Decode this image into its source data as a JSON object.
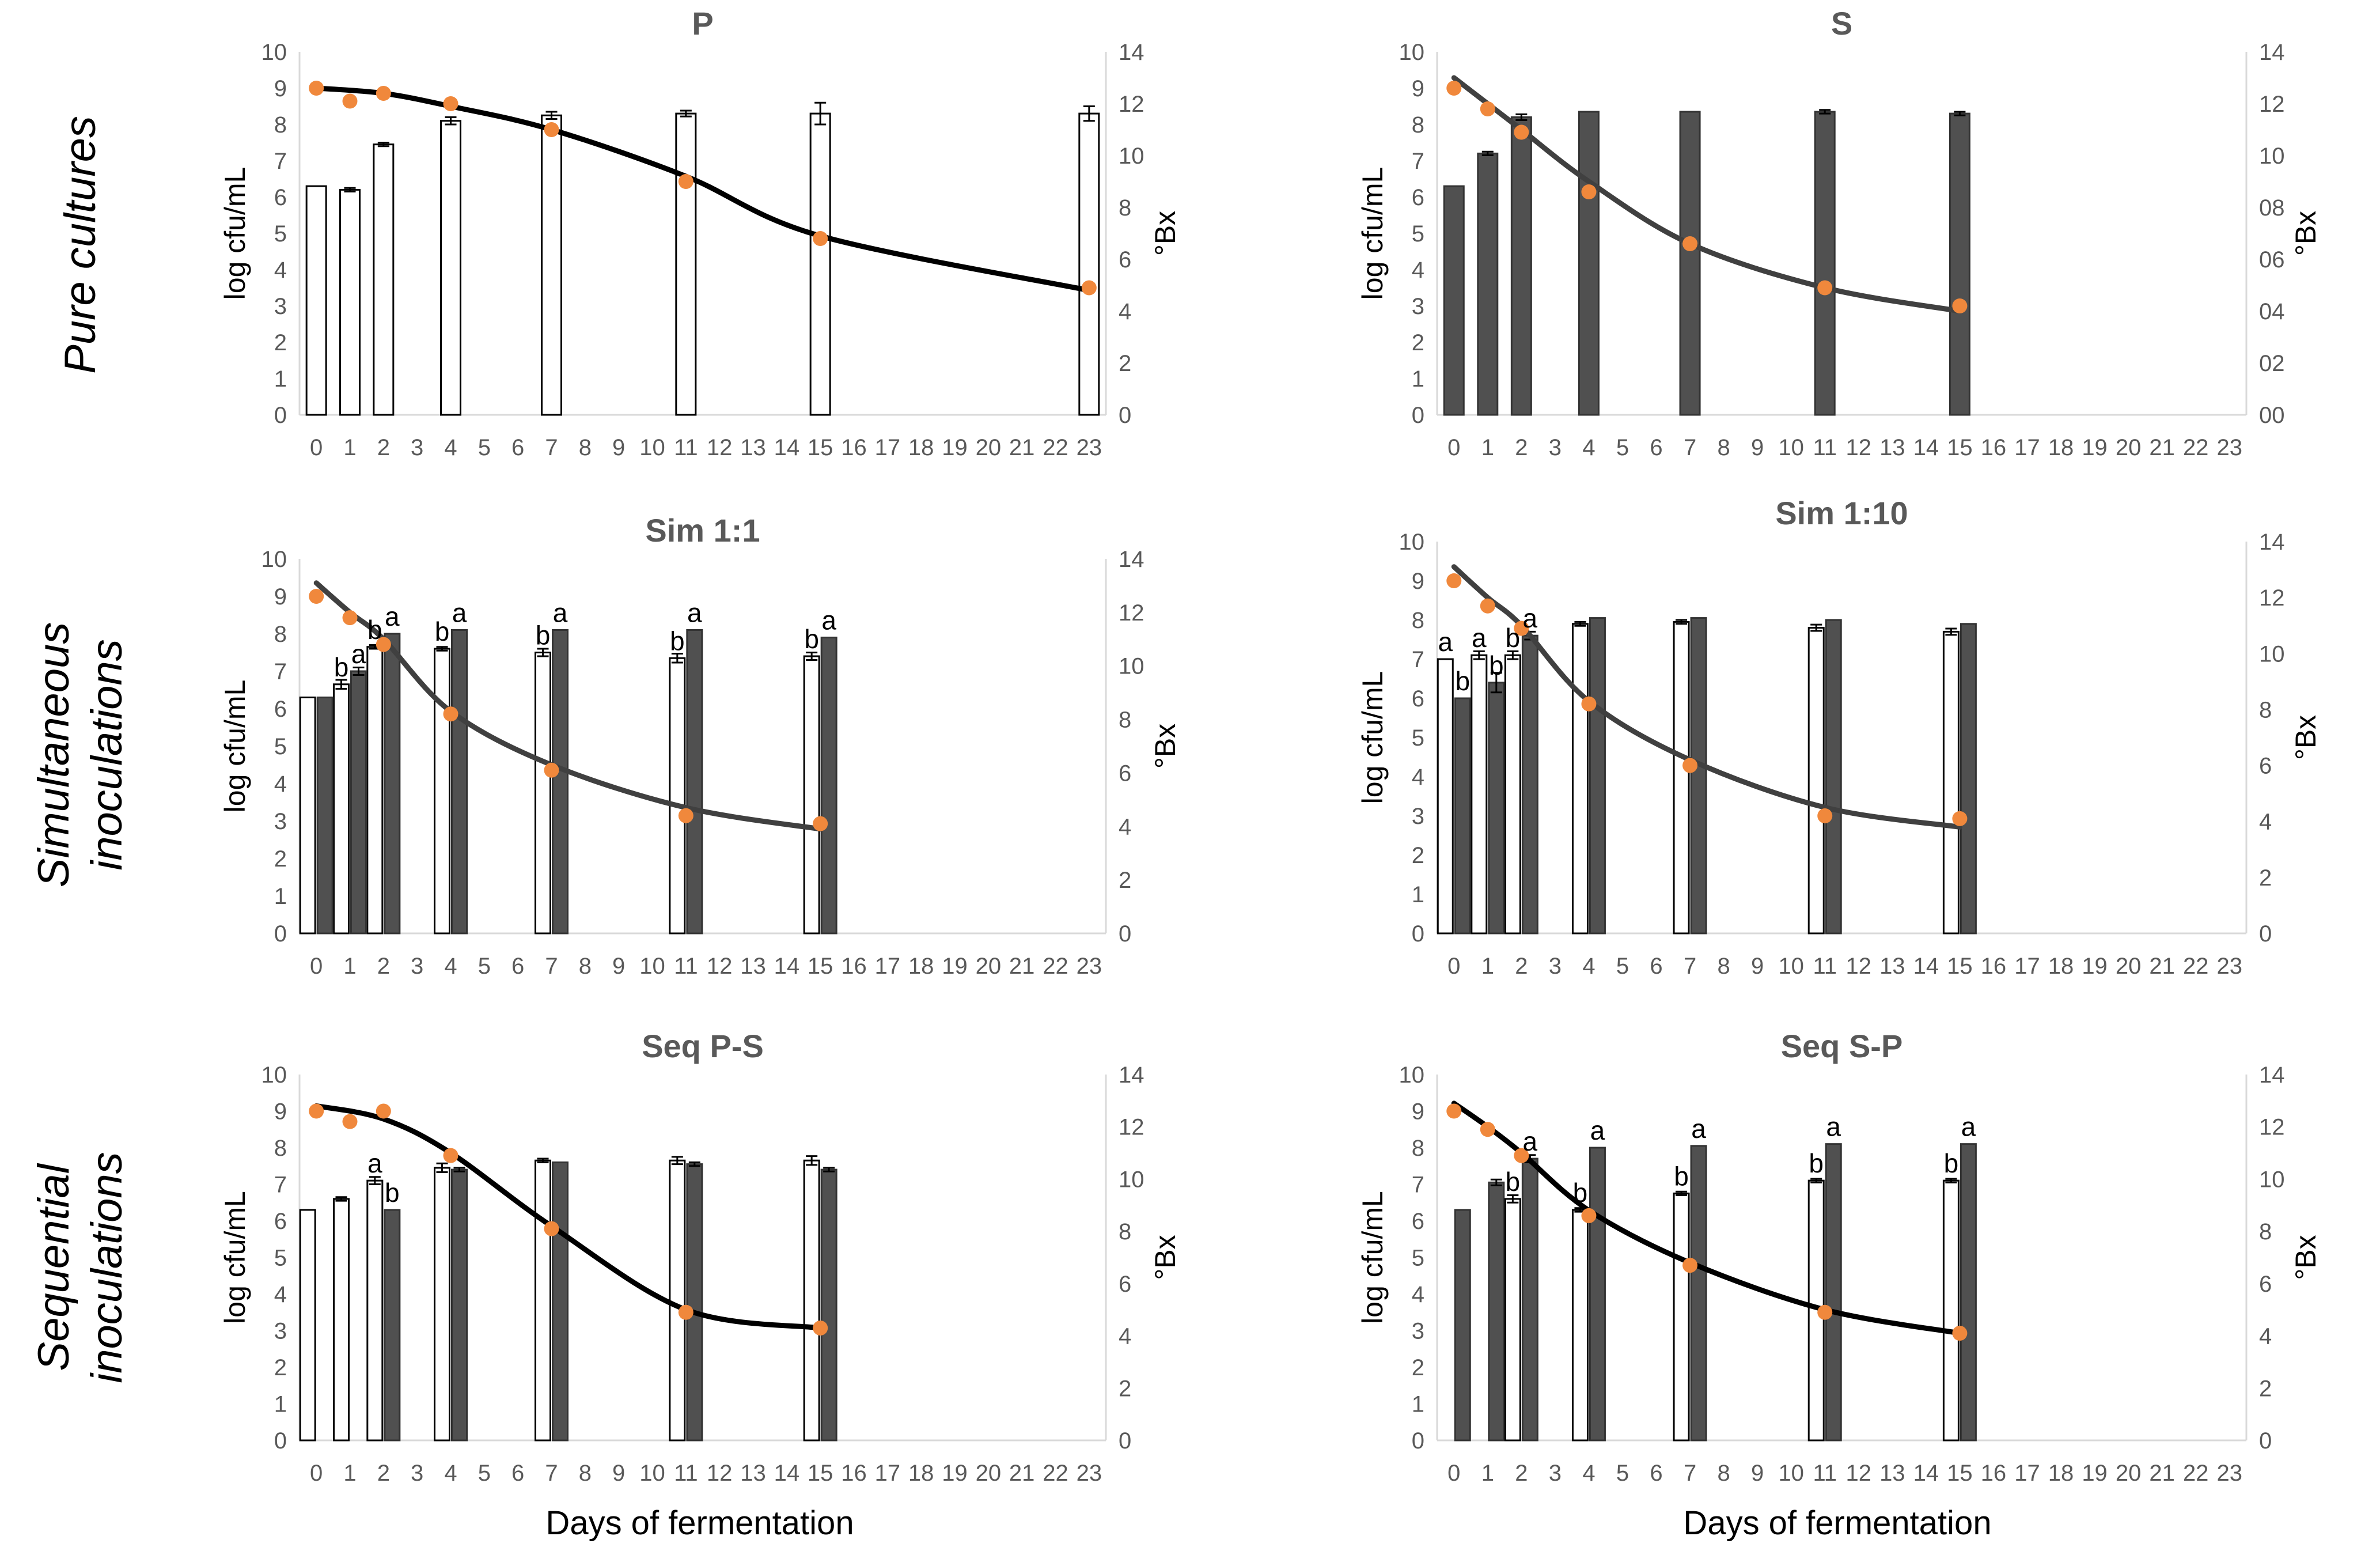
{
  "row_labels": [
    {
      "line1": "Pure cultures",
      "line2": ""
    },
    {
      "line1": "Simultaneous",
      "line2": "inoculations"
    },
    {
      "line1": "Sequential",
      "line2": "inoculations"
    }
  ],
  "x_axis_title": "Days of fermentation",
  "colors": {
    "white_bar": "#ffffff",
    "dark_bar": "#505050",
    "point": "#f0883c",
    "curve_black": "#000000",
    "curve_gray": "#404040",
    "axis": "#d9d9d9",
    "tick_text": "#595959"
  },
  "chart_data": [
    {
      "type": "bar",
      "title": "P",
      "ylabel": "log cfu/mL",
      "y2label": "°Bx",
      "ylim": [
        0,
        10
      ],
      "y2lim": [
        0,
        14
      ],
      "y2_ticks": [
        "0",
        "2",
        "4",
        "6",
        "8",
        "10",
        "12",
        "14"
      ],
      "categories": [
        "0",
        "1",
        "2",
        "3",
        "4",
        "5",
        "6",
        "7",
        "8",
        "9",
        "10",
        "11",
        "12",
        "13",
        "14",
        "15",
        "16",
        "17",
        "18",
        "19",
        "20",
        "21",
        "22",
        "23"
      ],
      "series": [
        {
          "name": "P",
          "color": "white",
          "x": [
            0,
            1,
            2,
            4,
            7,
            11,
            15,
            23
          ],
          "values": [
            6.3,
            6.2,
            7.45,
            8.1,
            8.25,
            8.3,
            8.3,
            8.3
          ],
          "err": [
            0,
            0.05,
            0.05,
            0.1,
            0.1,
            0.08,
            0.3,
            0.2
          ]
        }
      ],
      "brix_points": {
        "x": [
          0,
          1,
          2,
          4,
          7,
          11,
          15,
          23
        ],
        "values": [
          12.6,
          12.1,
          12.4,
          12.0,
          11.0,
          9.0,
          6.8,
          4.9
        ]
      },
      "brix_curve": {
        "color": "black",
        "x": [
          0,
          2,
          4,
          7,
          11,
          15,
          23
        ],
        "values": [
          12.6,
          12.4,
          11.9,
          11.0,
          9.2,
          6.9,
          4.8
        ]
      },
      "labels": []
    },
    {
      "type": "bar",
      "title": "S",
      "ylabel": "log cfu/mL",
      "y2label": "°Bx",
      "ylim": [
        0,
        10
      ],
      "y2lim": [
        0,
        14
      ],
      "y2_ticks": [
        "00",
        "02",
        "04",
        "06",
        "08",
        "10",
        "12",
        "14"
      ],
      "categories": [
        "0",
        "1",
        "2",
        "3",
        "4",
        "5",
        "6",
        "7",
        "8",
        "9",
        "10",
        "11",
        "12",
        "13",
        "14",
        "15",
        "16",
        "17",
        "18",
        "19",
        "20",
        "21",
        "22",
        "23"
      ],
      "series": [
        {
          "name": "S",
          "color": "dark",
          "x": [
            0,
            1,
            2,
            4,
            7,
            11,
            15
          ],
          "values": [
            6.3,
            7.2,
            8.2,
            8.35,
            8.35,
            8.35,
            8.3
          ],
          "err": [
            0,
            0.05,
            0.08,
            0,
            0,
            0.05,
            0.05
          ]
        }
      ],
      "brix_points": {
        "x": [
          0,
          1,
          2,
          4,
          7,
          11,
          15
        ],
        "values": [
          12.6,
          11.8,
          10.9,
          8.6,
          6.6,
          4.9,
          4.2
        ]
      },
      "brix_curve": {
        "color": "gray",
        "x": [
          0,
          1,
          2,
          4,
          7,
          11,
          15
        ],
        "values": [
          13.0,
          12.0,
          11.0,
          9.0,
          6.6,
          4.9,
          4.0
        ]
      },
      "labels": []
    },
    {
      "type": "bar",
      "title": "Sim 1:1",
      "ylabel": "log cfu/mL",
      "y2label": "°Bx",
      "ylim": [
        0,
        10
      ],
      "y2lim": [
        0,
        14
      ],
      "y2_ticks": [
        "0",
        "2",
        "4",
        "6",
        "8",
        "10",
        "12",
        "14"
      ],
      "categories": [
        "0",
        "1",
        "2",
        "3",
        "4",
        "5",
        "6",
        "7",
        "8",
        "9",
        "10",
        "11",
        "12",
        "13",
        "14",
        "15",
        "16",
        "17",
        "18",
        "19",
        "20",
        "21",
        "22",
        "23"
      ],
      "series": [
        {
          "name": "P",
          "color": "white",
          "x": [
            0,
            1,
            2,
            4,
            7,
            11,
            15
          ],
          "values": [
            6.3,
            6.65,
            7.65,
            7.6,
            7.5,
            7.35,
            7.4
          ],
          "err": [
            0,
            0.12,
            0.05,
            0.05,
            0.1,
            0.12,
            0.1
          ]
        },
        {
          "name": "S",
          "color": "dark",
          "x": [
            0,
            1,
            2,
            4,
            7,
            11,
            15
          ],
          "values": [
            6.3,
            7.0,
            8.0,
            8.1,
            8.1,
            8.1,
            7.9
          ],
          "err": [
            0,
            0.1,
            0,
            0,
            0,
            0,
            0
          ]
        }
      ],
      "brix_points": {
        "x": [
          0,
          1,
          2,
          4,
          7,
          11,
          15
        ],
        "values": [
          12.6,
          11.8,
          10.8,
          8.2,
          6.1,
          4.4,
          4.1
        ]
      },
      "brix_curve": {
        "color": "gray",
        "x": [
          0,
          1,
          2,
          4,
          7,
          11,
          15
        ],
        "values": [
          13.1,
          12.0,
          11.0,
          8.3,
          6.3,
          4.7,
          3.9
        ]
      },
      "labels": [
        {
          "text": "b",
          "x": 1,
          "side": "white",
          "value": 6.65
        },
        {
          "text": "a",
          "x": 1,
          "side": "dark",
          "value": 7.0
        },
        {
          "text": "b",
          "x": 2,
          "side": "white",
          "value": 7.65
        },
        {
          "text": "a",
          "x": 2,
          "side": "dark",
          "value": 8.0
        },
        {
          "text": "b",
          "x": 4,
          "side": "white",
          "value": 7.6
        },
        {
          "text": "a",
          "x": 4,
          "side": "dark",
          "value": 8.1
        },
        {
          "text": "b",
          "x": 7,
          "side": "white",
          "value": 7.5
        },
        {
          "text": "a",
          "x": 7,
          "side": "dark",
          "value": 8.1
        },
        {
          "text": "b",
          "x": 11,
          "side": "white",
          "value": 7.35
        },
        {
          "text": "a",
          "x": 11,
          "side": "dark",
          "value": 8.1
        },
        {
          "text": "b",
          "x": 15,
          "side": "white",
          "value": 7.4
        },
        {
          "text": "a",
          "x": 15,
          "side": "dark",
          "value": 7.9
        }
      ]
    },
    {
      "type": "bar",
      "title": "Sim 1:10",
      "ylabel": "log cfu/mL",
      "y2label": "°Bx",
      "ylim": [
        0,
        10
      ],
      "y2lim": [
        0,
        14
      ],
      "y2_ticks": [
        "0",
        "2",
        "4",
        "6",
        "8",
        "10",
        "12",
        "14"
      ],
      "categories": [
        "0",
        "1",
        "2",
        "3",
        "4",
        "5",
        "6",
        "7",
        "8",
        "9",
        "10",
        "11",
        "12",
        "13",
        "14",
        "15",
        "16",
        "17",
        "18",
        "19",
        "20",
        "21",
        "22",
        "23"
      ],
      "series": [
        {
          "name": "P",
          "color": "white",
          "x": [
            0,
            1,
            2,
            4,
            7,
            11,
            15
          ],
          "values": [
            7.0,
            7.1,
            7.1,
            7.9,
            7.95,
            7.8,
            7.7
          ],
          "err": [
            0,
            0.1,
            0.1,
            0.05,
            0.05,
            0.08,
            0.08
          ]
        },
        {
          "name": "S",
          "color": "dark",
          "x": [
            0,
            1,
            2,
            4,
            7,
            11,
            15
          ],
          "values": [
            6.0,
            6.4,
            7.6,
            8.05,
            8.05,
            8.0,
            7.9
          ],
          "err": [
            0,
            0.25,
            0.1,
            0,
            0,
            0,
            0
          ]
        }
      ],
      "brix_points": {
        "x": [
          0,
          1,
          2,
          4,
          7,
          11,
          15
        ],
        "values": [
          12.6,
          11.7,
          10.9,
          8.2,
          6.0,
          4.2,
          4.1
        ]
      },
      "brix_curve": {
        "color": "gray",
        "x": [
          0,
          1,
          2,
          4,
          7,
          11,
          15
        ],
        "values": [
          13.1,
          12.0,
          11.0,
          8.3,
          6.2,
          4.5,
          3.8
        ]
      },
      "labels": [
        {
          "text": "a",
          "x": 0,
          "side": "white",
          "value": 7.0
        },
        {
          "text": "b",
          "x": 0,
          "side": "dark",
          "value": 6.0
        },
        {
          "text": "a",
          "x": 1,
          "side": "white",
          "value": 7.1
        },
        {
          "text": "b",
          "x": 1,
          "side": "dark",
          "value": 6.4
        },
        {
          "text": "b",
          "x": 2,
          "side": "white",
          "value": 7.1
        },
        {
          "text": "a",
          "x": 2,
          "side": "dark",
          "value": 7.6
        }
      ]
    },
    {
      "type": "bar",
      "title": "Seq P-S",
      "ylabel": "log cfu/mL",
      "y2label": "°Bx",
      "ylim": [
        0,
        10
      ],
      "y2lim": [
        0,
        14
      ],
      "y2_ticks": [
        "0",
        "2",
        "4",
        "6",
        "8",
        "10",
        "12",
        "14"
      ],
      "categories": [
        "0",
        "1",
        "2",
        "3",
        "4",
        "5",
        "6",
        "7",
        "8",
        "9",
        "10",
        "11",
        "12",
        "13",
        "14",
        "15",
        "16",
        "17",
        "18",
        "19",
        "20",
        "21",
        "22",
        "23"
      ],
      "series": [
        {
          "name": "P",
          "color": "white",
          "x": [
            0,
            1,
            2,
            4,
            7,
            11,
            15
          ],
          "values": [
            6.3,
            6.6,
            7.1,
            7.45,
            7.65,
            7.65,
            7.65
          ],
          "err": [
            0,
            0.05,
            0.1,
            0.12,
            0.05,
            0.1,
            0.12
          ]
        },
        {
          "name": "S",
          "color": "dark",
          "x": [
            2,
            4,
            7,
            11,
            15
          ],
          "values": [
            6.3,
            7.4,
            7.6,
            7.55,
            7.4
          ],
          "err": [
            0,
            0.05,
            0,
            0.05,
            0.05
          ]
        }
      ],
      "brix_points": {
        "x": [
          0,
          1,
          2,
          4,
          7,
          11,
          15
        ],
        "values": [
          12.6,
          12.2,
          12.6,
          10.9,
          8.1,
          4.9,
          4.3
        ]
      },
      "brix_curve": {
        "color": "black",
        "x": [
          0,
          2,
          4,
          7,
          11,
          15
        ],
        "values": [
          12.8,
          12.3,
          11.0,
          8.2,
          5.0,
          4.3
        ]
      },
      "labels": [
        {
          "text": "a",
          "x": 2,
          "side": "white",
          "value": 7.1
        },
        {
          "text": "b",
          "x": 2,
          "side": "dark",
          "value": 6.3
        }
      ]
    },
    {
      "type": "bar",
      "title": "Seq S-P",
      "ylabel": "log cfu/mL",
      "y2label": "°Bx",
      "ylim": [
        0,
        10
      ],
      "y2lim": [
        0,
        14
      ],
      "y2_ticks": [
        "0",
        "2",
        "4",
        "6",
        "8",
        "10",
        "12",
        "14"
      ],
      "categories": [
        "0",
        "1",
        "2",
        "3",
        "4",
        "5",
        "6",
        "7",
        "8",
        "9",
        "10",
        "11",
        "12",
        "13",
        "14",
        "15",
        "16",
        "17",
        "18",
        "19",
        "20",
        "21",
        "22",
        "23"
      ],
      "series": [
        {
          "name": "S",
          "color": "dark",
          "x": [
            0,
            1,
            2,
            4,
            7,
            11,
            15
          ],
          "values": [
            6.3,
            7.05,
            7.7,
            8.0,
            8.05,
            8.1,
            8.1
          ],
          "err": [
            0,
            0.08,
            0.1,
            0,
            0,
            0,
            0
          ]
        },
        {
          "name": "P",
          "color": "white",
          "x": [
            2,
            4,
            7,
            11,
            15
          ],
          "values": [
            6.6,
            6.3,
            6.75,
            7.1,
            7.1
          ],
          "err": [
            0.1,
            0.05,
            0.05,
            0.05,
            0.05
          ]
        }
      ],
      "brix_points": {
        "x": [
          0,
          1,
          2,
          4,
          7,
          11,
          15
        ],
        "values": [
          12.6,
          11.9,
          10.9,
          8.6,
          6.7,
          4.9,
          4.1
        ]
      },
      "brix_curve": {
        "color": "black",
        "x": [
          0,
          1,
          2,
          4,
          7,
          11,
          15
        ],
        "values": [
          12.9,
          12.0,
          11.0,
          8.8,
          6.8,
          5.0,
          4.1
        ]
      },
      "labels": [
        {
          "text": "b",
          "x": 2,
          "side": "white",
          "value": 6.6
        },
        {
          "text": "a",
          "x": 2,
          "side": "dark",
          "value": 7.7
        },
        {
          "text": "b",
          "x": 4,
          "side": "white",
          "value": 6.3
        },
        {
          "text": "a",
          "x": 4,
          "side": "dark",
          "value": 8.0
        },
        {
          "text": "b",
          "x": 7,
          "side": "white",
          "value": 6.75
        },
        {
          "text": "a",
          "x": 7,
          "side": "dark",
          "value": 8.05
        },
        {
          "text": "b",
          "x": 11,
          "side": "white",
          "value": 7.1
        },
        {
          "text": "a",
          "x": 11,
          "side": "dark",
          "value": 8.1
        },
        {
          "text": "b",
          "x": 15,
          "side": "white",
          "value": 7.1
        },
        {
          "text": "a",
          "x": 15,
          "side": "dark",
          "value": 8.1
        }
      ]
    }
  ]
}
